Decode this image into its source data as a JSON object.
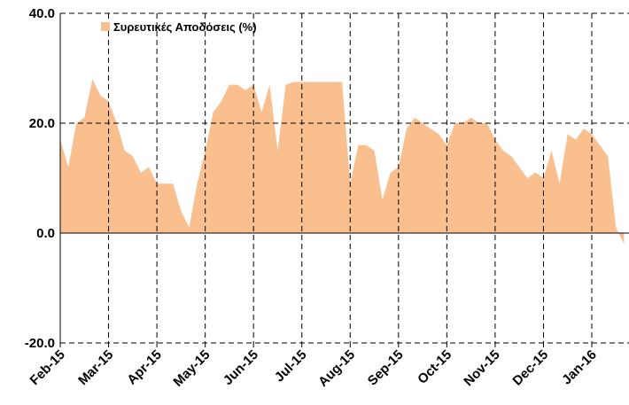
{
  "chart_data": {
    "type": "area",
    "categories": [
      "Feb-15",
      null,
      null,
      null,
      null,
      null,
      "Mar-15",
      null,
      null,
      null,
      null,
      null,
      "Apr-15",
      null,
      null,
      null,
      null,
      null,
      "May-15",
      null,
      null,
      null,
      null,
      null,
      "Jun-15",
      null,
      null,
      null,
      null,
      null,
      "Jul-15",
      null,
      null,
      null,
      null,
      null,
      "Aug-15",
      null,
      null,
      null,
      null,
      null,
      "Sep-15",
      null,
      null,
      null,
      null,
      null,
      "Oct-15",
      null,
      null,
      null,
      null,
      null,
      "Nov-15",
      null,
      null,
      null,
      null,
      null,
      "Dec-15",
      null,
      null,
      null,
      null,
      null,
      "Jan-16",
      null,
      null,
      null,
      null
    ],
    "series": [
      {
        "name": "Συρευτικές Αποδόσεις (%)",
        "color": "#f9bf8f",
        "values": [
          17,
          12,
          20,
          21,
          28,
          25,
          24,
          20,
          15,
          14,
          11,
          12,
          9,
          9,
          9,
          4,
          1,
          9,
          15,
          22,
          24,
          27,
          27,
          26,
          27,
          22,
          27,
          15,
          27,
          27.5,
          27.5,
          27.5,
          27.5,
          27.5,
          27.5,
          27.5,
          9,
          16,
          16,
          15,
          6,
          11,
          12,
          19,
          21,
          20,
          19,
          18,
          16,
          20,
          20,
          21,
          20,
          20,
          17,
          15,
          14,
          12,
          10,
          11,
          10,
          15,
          9,
          18,
          17,
          19,
          18,
          16,
          14,
          1,
          -2
        ]
      }
    ],
    "ylim": [
      -20,
      40
    ],
    "yticks": [
      {
        "value": -20,
        "label": "-20.0"
      },
      {
        "value": 0,
        "label": "0.0"
      },
      {
        "value": 20,
        "label": "20.0"
      },
      {
        "value": 40,
        "label": "40.0"
      }
    ],
    "grid": true
  }
}
